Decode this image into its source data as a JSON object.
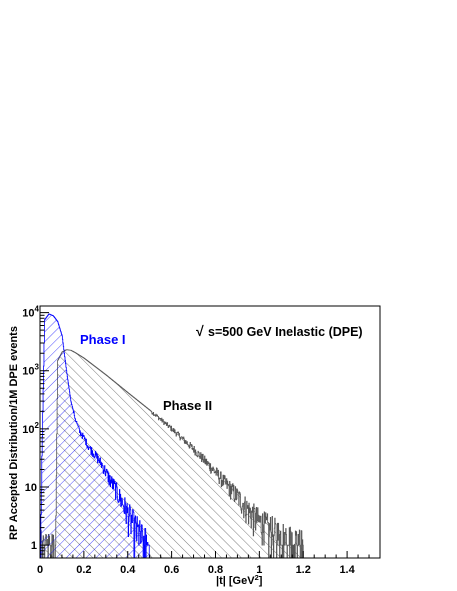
{
  "chart_data": {
    "type": "line",
    "yscale": "log",
    "xlim": [
      0,
      1.55
    ],
    "ylim": [
      0.6,
      13000
    ],
    "xlabel_main": "|t| [GeV",
    "xlabel_sup": "2",
    "xlabel_close": "]",
    "ylabel": "RP Accepted Distribution/1M DPE events",
    "x_ticks": [
      {
        "v": 0,
        "label": "0"
      },
      {
        "v": 0.2,
        "label": "0.2"
      },
      {
        "v": 0.4,
        "label": "0.4"
      },
      {
        "v": 0.6,
        "label": "0.6"
      },
      {
        "v": 0.8,
        "label": "0.8"
      },
      {
        "v": 1.0,
        "label": "1"
      },
      {
        "v": 1.2,
        "label": "1.2"
      },
      {
        "v": 1.4,
        "label": "1.4"
      }
    ],
    "y_ticks": [
      {
        "v": 1,
        "label": "1"
      },
      {
        "v": 10,
        "label": "10"
      },
      {
        "v": 100,
        "label": "10",
        "sup": "2"
      },
      {
        "v": 1000,
        "label": "10",
        "sup": "3"
      },
      {
        "v": 10000,
        "label": "10",
        "sup": "4"
      }
    ],
    "annotation": {
      "sqrt": "√",
      "text": "s=500 GeV Inelastic (DPE)"
    },
    "series": [
      {
        "name": "Phase I",
        "color": "#0000ff",
        "fill": "hatched",
        "x": [
          0.0,
          0.02,
          0.04,
          0.06,
          0.08,
          0.1,
          0.12,
          0.14,
          0.16,
          0.18,
          0.2,
          0.22,
          0.24,
          0.26,
          0.28,
          0.3,
          0.32,
          0.34,
          0.36,
          0.38,
          0.4,
          0.42,
          0.44,
          0.46,
          0.48,
          0.5
        ],
        "y": [
          0.8,
          7500,
          9500,
          8800,
          7000,
          4000,
          1000,
          300,
          150,
          90,
          70,
          50,
          40,
          32,
          25,
          18,
          13,
          10,
          7,
          5,
          3.5,
          2.5,
          1.8,
          1.3,
          1.0,
          0.8
        ]
      },
      {
        "name": "Phase II",
        "color": "#555555",
        "fill": "hatched",
        "x": [
          0.0,
          0.07,
          0.08,
          0.1,
          0.12,
          0.14,
          0.16,
          0.2,
          0.3,
          0.4,
          0.5,
          0.6,
          0.7,
          0.8,
          0.85,
          0.9,
          0.95,
          1.0,
          1.05,
          1.1,
          1.15,
          1.2
        ],
        "y": [
          0.8,
          0.8,
          1500,
          2100,
          2300,
          2250,
          2050,
          1650,
          850,
          420,
          210,
          100,
          45,
          18,
          11,
          7,
          4,
          2.5,
          1.8,
          1.3,
          1.0,
          0.8
        ]
      }
    ]
  }
}
